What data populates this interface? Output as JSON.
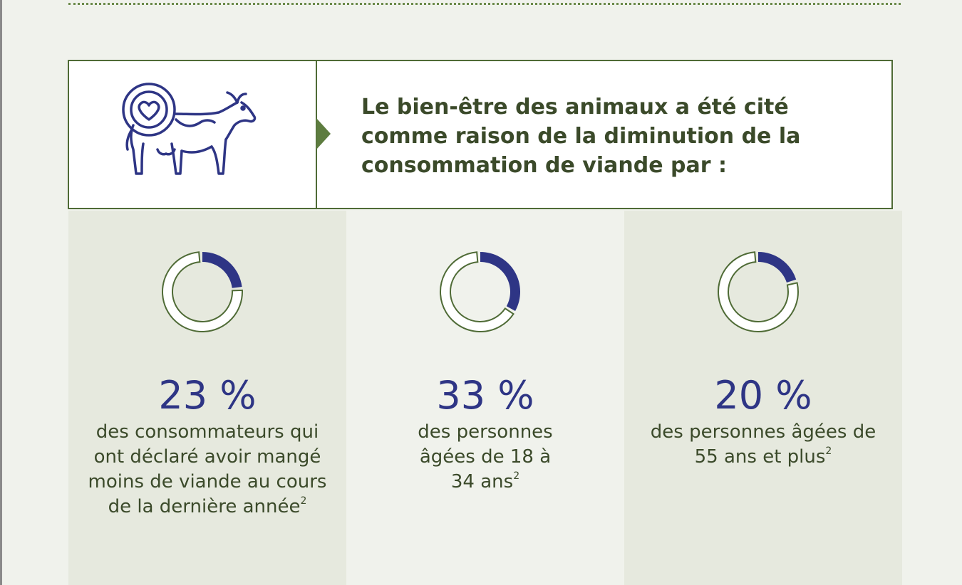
{
  "headline": "Le bien-être des animaux a été cité comme raison de la diminution de la consommation de viande par :",
  "icon": "cow-heart-icon",
  "colors": {
    "accent": "#2e3585",
    "border": "#4f6b36",
    "text": "#3b4a2a",
    "panel_shade": "#e6e9de",
    "ring_track": "#4f6b36"
  },
  "chart_data": [
    {
      "type": "pie",
      "title": "des consommateurs qui ont déclaré avoir mangé moins de viande au cours de la dernière année",
      "value": 23,
      "value_label": "23 %",
      "description": "des consommateurs qui ont déclaré avoir mangé moins de viande au cours de la dernière année",
      "footnote": "2"
    },
    {
      "type": "pie",
      "title": "des personnes âgées de 18 à 34 ans",
      "value": 33,
      "value_label": "33 %",
      "description": "des personnes âgées de 18 à 34 ans",
      "footnote": "2"
    },
    {
      "type": "pie",
      "title": "des personnes âgées de 55 ans et plus",
      "value": 20,
      "value_label": "20 %",
      "description": "des personnes âgées de 55 ans et plus",
      "footnote": "2"
    }
  ]
}
